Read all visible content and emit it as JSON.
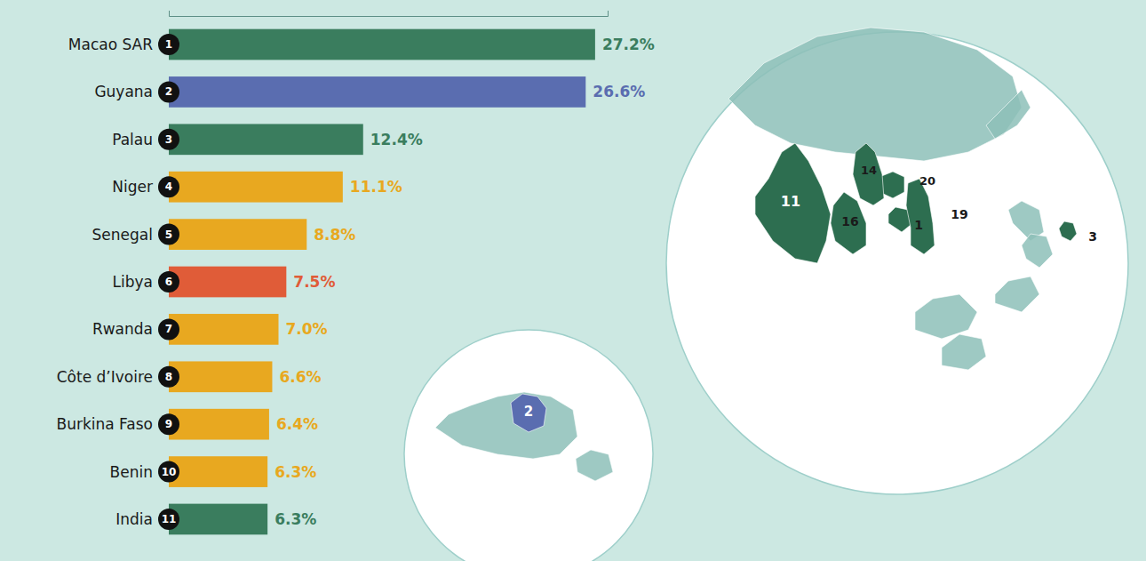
{
  "chart_data": {
    "type": "bar",
    "orientation": "horizontal",
    "categories": [
      "Macao SAR",
      "Guyana",
      "Palau",
      "Niger",
      "Senegal",
      "Libya",
      "Rwanda",
      "Côte d’Ivoire",
      "Burkina Faso",
      "Benin",
      "India"
    ],
    "values": [
      27.2,
      26.6,
      12.4,
      11.1,
      8.8,
      7.5,
      7.0,
      6.6,
      6.4,
      6.3,
      6.3
    ],
    "value_labels": [
      "27.2%",
      "26.6%",
      "12.4%",
      "11.1%",
      "8.8%",
      "7.5%",
      "7.0%",
      "6.6%",
      "6.4%",
      "6.3%",
      "6.3%"
    ],
    "data_labels": true,
    "ranks": [
      1,
      2,
      3,
      4,
      5,
      6,
      7,
      8,
      9,
      10,
      11
    ],
    "colors": [
      "#3a7d5e",
      "#5a6db0",
      "#3a7d5e",
      "#e8a820",
      "#e8a820",
      "#e05c38",
      "#e8a820",
      "#e8a820",
      "#e8a820",
      "#e8a820",
      "#3a7d5e"
    ],
    "xlim": [
      0,
      28
    ],
    "xticks": [],
    "tick_labels": false,
    "grid": false,
    "annotations": [
      "11",
      "16",
      "1",
      "20",
      "14",
      "19",
      "3",
      "2"
    ]
  }
}
